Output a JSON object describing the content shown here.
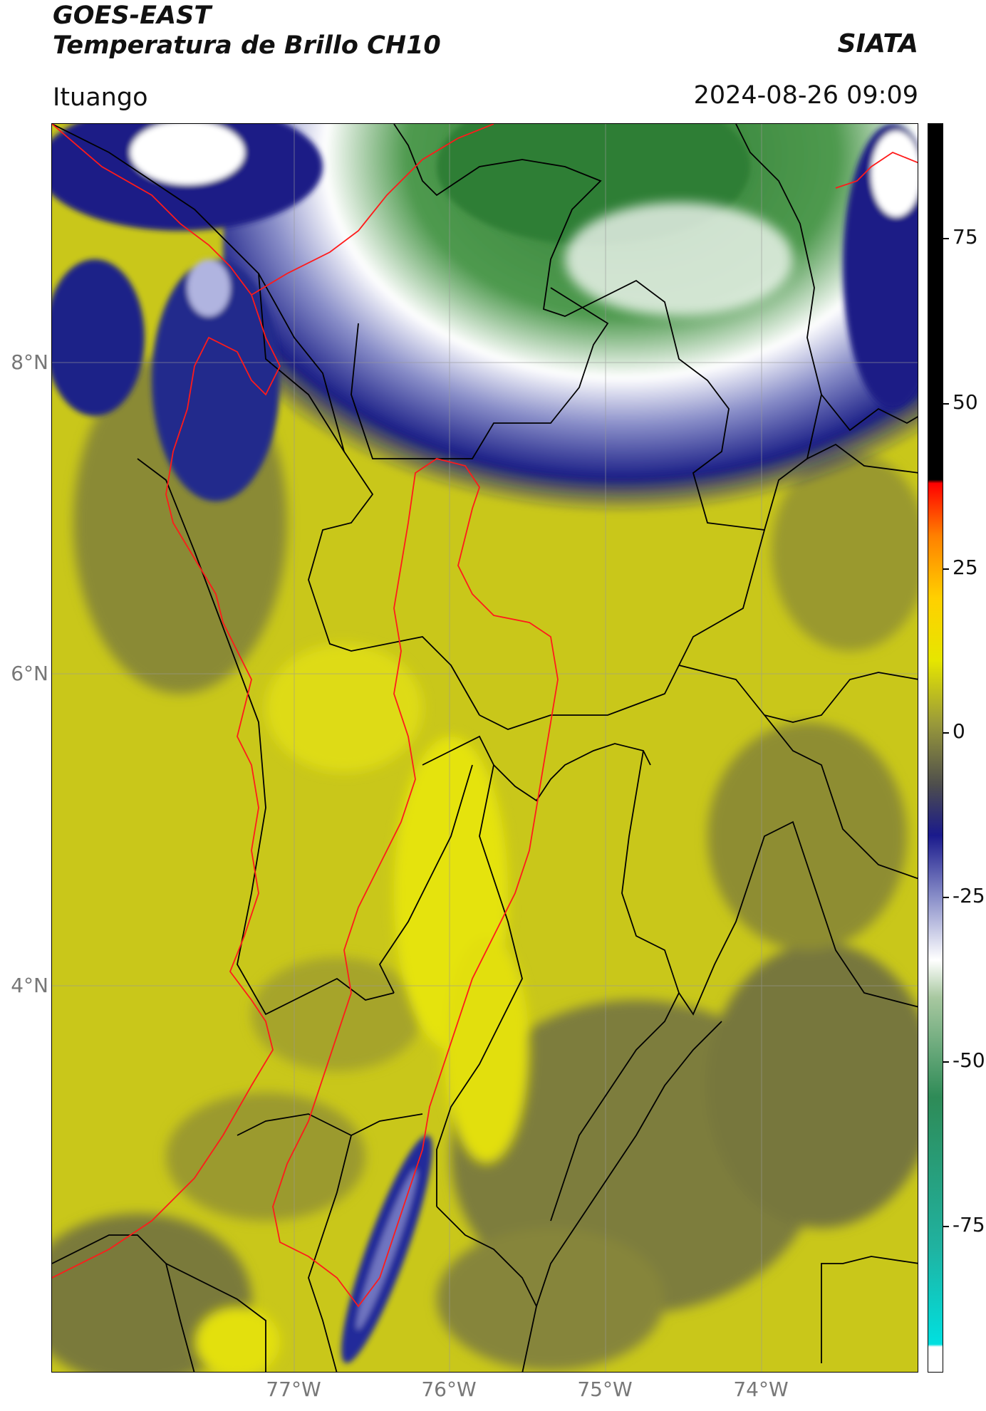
{
  "header": {
    "satellite": "GOES-EAST",
    "product": "Temperatura de Brillo CH10",
    "organization": "SIATA",
    "location": "Ituango",
    "datetime": "2024-08-26 09:09"
  },
  "map": {
    "lat_labels": [
      "8°N",
      "6°N",
      "4°N"
    ],
    "lon_labels": [
      "77°W",
      "76°W",
      "75°W",
      "74°W"
    ],
    "boundary_colors": {
      "basin": "#ff1a1a",
      "admin": "#000000"
    }
  },
  "colorbar": {
    "labels": [
      "75",
      "50",
      "25",
      "0",
      "-25",
      "-50",
      "-75"
    ],
    "units_note": "",
    "palette": [
      "#ffffff",
      "#00e0e0",
      "#2e8b57",
      "#ffffff",
      "#1a1a8c",
      "#4d4d4d",
      "#e6e600",
      "#ff8000",
      "#ff0000",
      "#000000"
    ]
  }
}
